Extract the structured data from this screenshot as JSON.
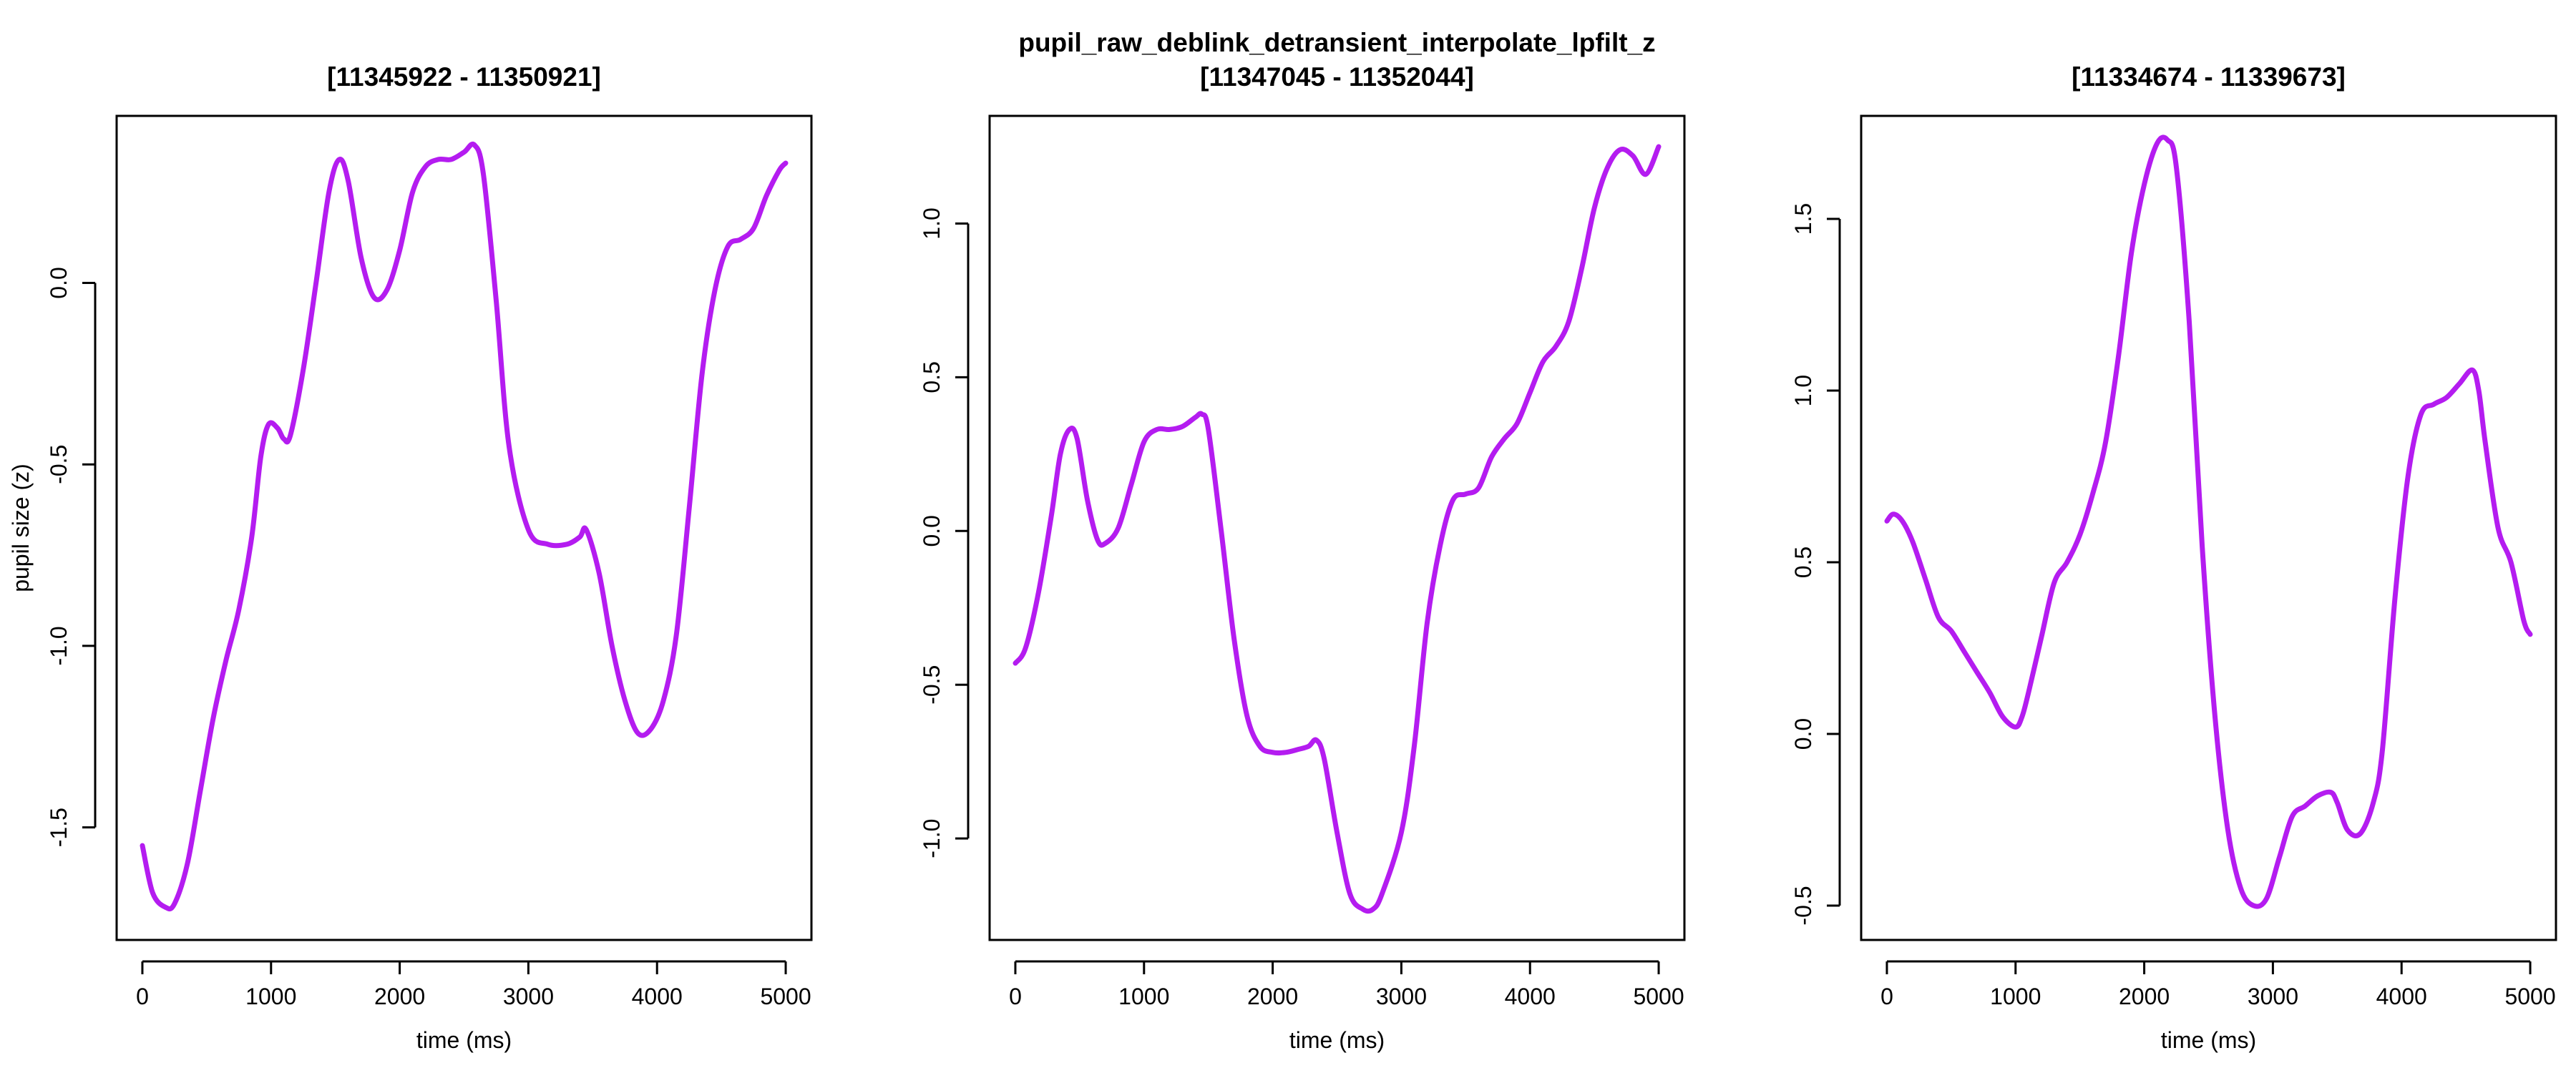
{
  "figure": {
    "suptitle": "pupil_raw_deblink_detransient_interpolate_lpfilt_z",
    "line_color": "#B41CF0"
  },
  "chart_data": [
    {
      "type": "line",
      "title": "[11345922 - 11350921]",
      "xlabel": "time (ms)",
      "ylabel": "pupil size (z)",
      "xlim": [
        0,
        5000
      ],
      "ylim": [
        -1.81,
        0.46
      ],
      "xticks": [
        0,
        1000,
        2000,
        3000,
        4000,
        5000
      ],
      "yticks": [
        -1.5,
        -1.0,
        -0.5,
        0.0
      ],
      "ytick_labels": [
        "-1.5",
        "-1.0",
        "-0.5",
        "0.0"
      ],
      "grid": false,
      "series": [
        {
          "x": [
            0,
            80,
            180,
            250,
            350,
            450,
            550,
            650,
            750,
            850,
            920,
            980,
            1050,
            1100,
            1150,
            1250,
            1350,
            1450,
            1530,
            1600,
            1700,
            1800,
            1900,
            2000,
            2100,
            2200,
            2300,
            2400,
            2500,
            2580,
            2650,
            2750,
            2850,
            3000,
            3150,
            3300,
            3400,
            3450,
            3550,
            3650,
            3750,
            3850,
            3950,
            4050,
            4150,
            4250,
            4350,
            4450,
            4550,
            4650,
            4750,
            4850,
            4950,
            5000
          ],
          "y": [
            -1.55,
            -1.68,
            -1.72,
            -1.71,
            -1.6,
            -1.4,
            -1.2,
            -1.04,
            -0.9,
            -0.7,
            -0.48,
            -0.39,
            -0.4,
            -0.43,
            -0.42,
            -0.24,
            0.0,
            0.25,
            0.34,
            0.28,
            0.07,
            -0.04,
            -0.02,
            0.09,
            0.25,
            0.32,
            0.34,
            0.34,
            0.36,
            0.38,
            0.3,
            -0.05,
            -0.45,
            -0.68,
            -0.72,
            -0.72,
            -0.7,
            -0.68,
            -0.8,
            -1.0,
            -1.15,
            -1.24,
            -1.23,
            -1.15,
            -0.97,
            -0.62,
            -0.25,
            -0.02,
            0.1,
            0.12,
            0.15,
            0.24,
            0.31,
            0.33
          ]
        }
      ]
    },
    {
      "type": "line",
      "title": "[11347045 - 11352044]",
      "xlabel": "time (ms)",
      "ylabel": "",
      "xlim": [
        0,
        5000
      ],
      "ylim": [
        -1.33,
        1.35
      ],
      "xticks": [
        0,
        1000,
        2000,
        3000,
        4000,
        5000
      ],
      "yticks": [
        -1.0,
        -0.5,
        0.0,
        0.5,
        1.0
      ],
      "ytick_labels": [
        "-1.0",
        "-0.5",
        "0.0",
        "0.5",
        "1.0"
      ],
      "grid": false,
      "series": [
        {
          "x": [
            0,
            80,
            180,
            280,
            350,
            420,
            480,
            560,
            640,
            700,
            800,
            900,
            1000,
            1100,
            1200,
            1300,
            1400,
            1450,
            1500,
            1600,
            1700,
            1800,
            1900,
            2000,
            2100,
            2200,
            2280,
            2340,
            2400,
            2500,
            2600,
            2700,
            2780,
            2850,
            3000,
            3100,
            3200,
            3300,
            3400,
            3500,
            3600,
            3700,
            3800,
            3900,
            4000,
            4100,
            4200,
            4300,
            4400,
            4500,
            4600,
            4700,
            4800,
            4900,
            5000
          ],
          "y": [
            -0.43,
            -0.38,
            -0.2,
            0.05,
            0.25,
            0.33,
            0.3,
            0.1,
            -0.03,
            -0.04,
            0.01,
            0.15,
            0.29,
            0.33,
            0.33,
            0.34,
            0.37,
            0.38,
            0.33,
            0.0,
            -0.35,
            -0.6,
            -0.7,
            -0.72,
            -0.72,
            -0.71,
            -0.7,
            -0.68,
            -0.74,
            -0.98,
            -1.18,
            -1.23,
            -1.23,
            -1.18,
            -0.98,
            -0.7,
            -0.3,
            -0.05,
            0.1,
            0.12,
            0.14,
            0.24,
            0.3,
            0.35,
            0.45,
            0.55,
            0.6,
            0.68,
            0.85,
            1.05,
            1.18,
            1.24,
            1.22,
            1.16,
            1.25
          ]
        }
      ]
    },
    {
      "type": "line",
      "title": "[11334674 - 11339673]",
      "xlabel": "time (ms)",
      "ylabel": "",
      "xlim": [
        0,
        5000
      ],
      "ylim": [
        -0.6,
        1.8
      ],
      "xticks": [
        0,
        1000,
        2000,
        3000,
        4000,
        5000
      ],
      "yticks": [
        -0.5,
        0.0,
        0.5,
        1.0,
        1.5
      ],
      "ytick_labels": [
        "-0.5",
        "0.0",
        "0.5",
        "1.0",
        "1.5"
      ],
      "grid": false,
      "series": [
        {
          "x": [
            0,
            50,
            120,
            200,
            300,
            400,
            500,
            600,
            700,
            800,
            900,
            1000,
            1050,
            1100,
            1200,
            1300,
            1400,
            1500,
            1600,
            1700,
            1800,
            1900,
            2000,
            2100,
            2180,
            2250,
            2350,
            2450,
            2550,
            2650,
            2750,
            2850,
            2950,
            3050,
            3150,
            3250,
            3350,
            3450,
            3500,
            3580,
            3680,
            3780,
            3850,
            3950,
            4050,
            4150,
            4250,
            4350,
            4450,
            4550,
            4600,
            4650,
            4750,
            4850,
            4950,
            5000
          ],
          "y": [
            0.62,
            0.64,
            0.62,
            0.56,
            0.45,
            0.34,
            0.3,
            0.24,
            0.18,
            0.12,
            0.05,
            0.02,
            0.05,
            0.12,
            0.28,
            0.44,
            0.5,
            0.58,
            0.7,
            0.85,
            1.1,
            1.4,
            1.6,
            1.72,
            1.73,
            1.65,
            1.2,
            0.55,
            0.05,
            -0.28,
            -0.45,
            -0.5,
            -0.48,
            -0.36,
            -0.24,
            -0.21,
            -0.18,
            -0.17,
            -0.2,
            -0.28,
            -0.29,
            -0.2,
            -0.05,
            0.4,
            0.75,
            0.93,
            0.96,
            0.98,
            1.02,
            1.06,
            1.0,
            0.85,
            0.6,
            0.5,
            0.33,
            0.29
          ]
        }
      ]
    }
  ]
}
